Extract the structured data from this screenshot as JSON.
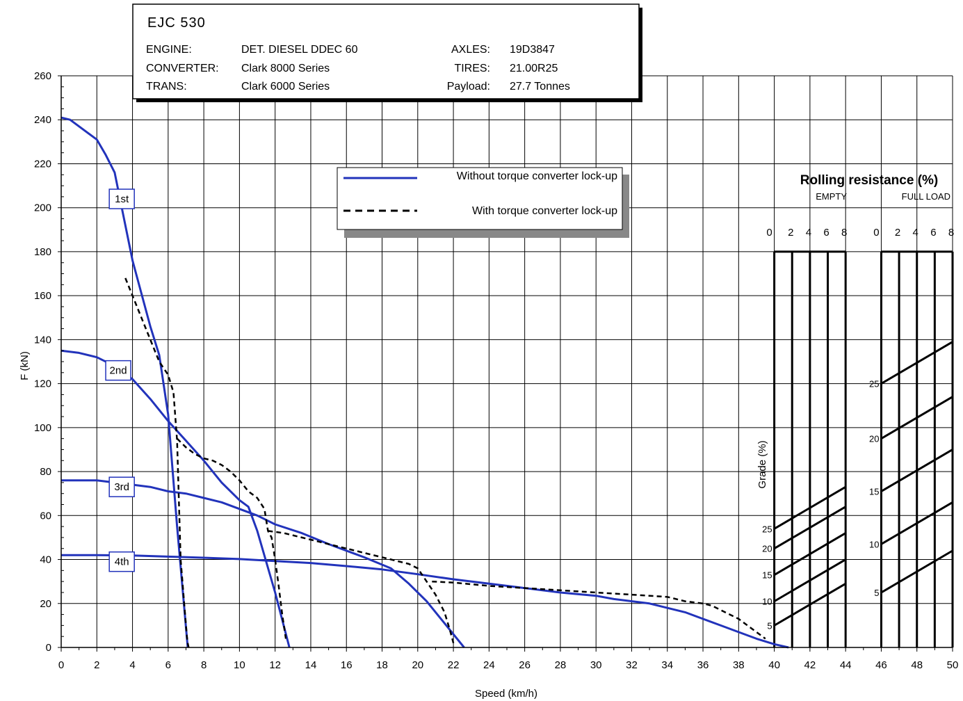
{
  "chart_data": {
    "type": "line",
    "xlabel": "Speed (km/h)",
    "ylabel": "F (kN)",
    "xlim": [
      0,
      50
    ],
    "ylim": [
      0,
      260
    ],
    "xticks": [
      0,
      2,
      4,
      6,
      8,
      10,
      12,
      14,
      16,
      18,
      20,
      22,
      24,
      26,
      28,
      30,
      32,
      34,
      36,
      38,
      40,
      42,
      44,
      46,
      48,
      50
    ],
    "yticks": [
      0,
      20,
      40,
      60,
      80,
      100,
      120,
      140,
      160,
      180,
      200,
      220,
      240,
      260
    ],
    "grid": true,
    "info": {
      "title": "EJC 530",
      "rows": [
        {
          "label": "ENGINE:",
          "value": "DET. DIESEL DDEC 60",
          "label2": "AXLES:",
          "value2": "19D3847"
        },
        {
          "label": "CONVERTER:",
          "value": "Clark 8000 Series",
          "label2": "TIRES:",
          "value2": "21.00R25"
        },
        {
          "label": "TRANS:",
          "value": "Clark 6000 Series",
          "label2": "Payload:",
          "value2": "27.7 Tonnes"
        }
      ]
    },
    "legend": {
      "placement": "top-center",
      "solid": "Without torque converter lock-up",
      "dashed": "With torque converter lock-up"
    },
    "gear_labels": [
      {
        "text": "1st",
        "x": 3.4,
        "y": 204
      },
      {
        "text": "2nd",
        "x": 3.2,
        "y": 126
      },
      {
        "text": "3rd",
        "x": 3.4,
        "y": 73
      },
      {
        "text": "4th",
        "x": 3.4,
        "y": 39
      }
    ],
    "series": [
      {
        "style": "solid",
        "color": "#2233bb",
        "x": [
          0,
          0.5,
          1,
          2,
          2.5,
          3,
          3.5,
          4,
          4.5,
          5,
          5.5,
          6,
          6.5,
          7.1
        ],
        "y": [
          241,
          240,
          237,
          231,
          224,
          216,
          196,
          176,
          161,
          146,
          133,
          106,
          55,
          0
        ]
      },
      {
        "style": "solid",
        "color": "#2233bb",
        "x": [
          0,
          1,
          2,
          3,
          4,
          5,
          6,
          7,
          8,
          9,
          10,
          10.5,
          11,
          12,
          12.8
        ],
        "y": [
          135,
          134,
          132,
          128,
          122,
          113,
          103,
          94,
          85,
          75,
          67,
          64,
          53,
          25,
          0
        ]
      },
      {
        "style": "solid",
        "color": "#2233bb",
        "x": [
          0,
          1,
          2,
          3,
          4,
          5,
          6,
          7,
          8,
          9,
          10,
          11,
          12,
          13.5,
          15,
          17,
          18.5,
          19.5,
          20.5,
          21.5,
          22.6
        ],
        "y": [
          76,
          76,
          76,
          75,
          74,
          73,
          71,
          70,
          68,
          66,
          63,
          60,
          56,
          52,
          47,
          41,
          36,
          29,
          21,
          11,
          0
        ]
      },
      {
        "style": "solid",
        "color": "#2233bb",
        "x": [
          0,
          2,
          4,
          6,
          8,
          10,
          12,
          14,
          16,
          18,
          20,
          22,
          24,
          26,
          28,
          30,
          31,
          33,
          35,
          36,
          37,
          38,
          39,
          40,
          40.8
        ],
        "y": [
          42,
          42,
          41.8,
          41.3,
          40.8,
          40.2,
          39.3,
          38.4,
          37,
          35.5,
          33.3,
          31,
          29,
          27,
          25,
          23.5,
          22,
          20,
          16,
          13,
          10,
          7,
          4,
          1.5,
          0
        ]
      },
      {
        "style": "dashed",
        "color": "#000000",
        "x": [
          3.6,
          4,
          4.5,
          5,
          5.5,
          6,
          6.3,
          6.5,
          6.7,
          6.8,
          6.9,
          7,
          7.05,
          7.1,
          7.15
        ],
        "y": [
          168,
          160,
          150,
          140,
          130,
          124,
          116,
          94,
          40,
          30,
          20,
          10,
          5,
          2,
          0
        ]
      },
      {
        "style": "dashed",
        "color": "#000000",
        "x": [
          6.5,
          7,
          7.5,
          8,
          8.5,
          9,
          9.5,
          10,
          10.5,
          11,
          11.4,
          11.6,
          11.8,
          12,
          12.2,
          12.4,
          12.6
        ],
        "y": [
          95,
          91,
          88,
          86,
          85,
          83,
          80,
          76,
          71,
          68,
          63,
          53,
          50,
          40,
          28,
          15,
          4
        ]
      },
      {
        "style": "dashed",
        "color": "#000000",
        "x": [
          11.6,
          12.5,
          13.5,
          14.5,
          15.5,
          16.5,
          17.5,
          18.5,
          19.5,
          20,
          20.5,
          21,
          21.5,
          21.8,
          22
        ],
        "y": [
          53,
          52,
          50,
          48,
          46,
          44,
          42,
          40,
          38,
          36,
          30,
          24,
          16,
          8,
          2
        ]
      },
      {
        "style": "dashed",
        "color": "#000000",
        "x": [
          20.8,
          22,
          24,
          26,
          28,
          30,
          32,
          34,
          35,
          36,
          36.5,
          37,
          37.5,
          38,
          38.5,
          39,
          39.5
        ],
        "y": [
          30,
          29.5,
          28,
          27,
          26,
          25,
          24,
          23,
          21,
          20,
          19,
          17,
          15,
          13,
          10,
          7,
          4
        ]
      }
    ],
    "panel": {
      "title": "Rolling resistance (%)",
      "empty_label": "EMPTY",
      "full_label": "FULL LOAD",
      "scale_ticks": [
        "0",
        "2",
        "4",
        "6",
        "8"
      ],
      "grade_label": "Grade (%)",
      "empty_grades": [
        {
          "text": "25",
          "y": 54
        },
        {
          "text": "20",
          "y": 45
        },
        {
          "text": "15",
          "y": 33
        },
        {
          "text": "10",
          "y": 21
        },
        {
          "text": "5",
          "y": 10
        }
      ],
      "full_grades": [
        {
          "text": "25",
          "y": 120
        },
        {
          "text": "20",
          "y": 95
        },
        {
          "text": "15",
          "y": 71
        },
        {
          "text": "10",
          "y": 47
        },
        {
          "text": "5",
          "y": 25
        }
      ]
    }
  }
}
